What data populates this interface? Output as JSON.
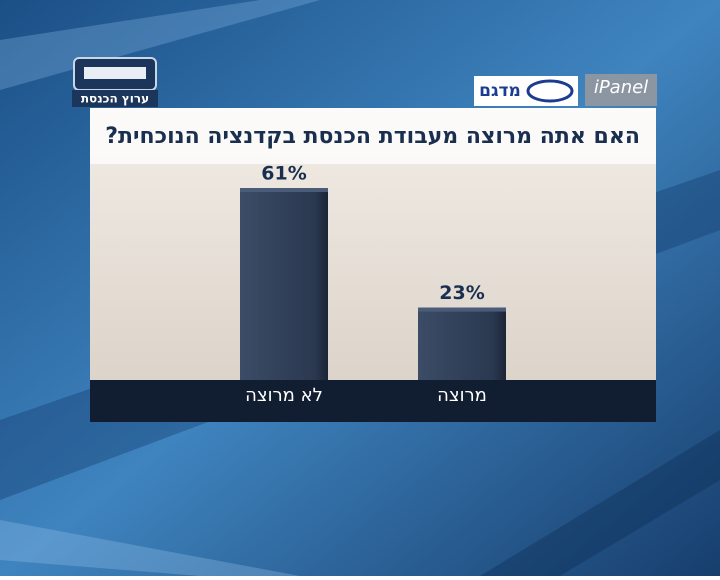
{
  "channel_logo": "ערוץ הכנסת",
  "pollster_logos": [
    "מדגם",
    "iPanel"
  ],
  "chart_data": {
    "type": "bar",
    "title": "האם אתה מרוצה מעבודת הכנסת בקדנציה הנוכחית?",
    "categories": [
      "לא מרוצה",
      "מרוצה"
    ],
    "values": [
      61,
      23
    ],
    "value_labels": [
      "61%",
      "23%"
    ],
    "color": "#2c3a52"
  }
}
